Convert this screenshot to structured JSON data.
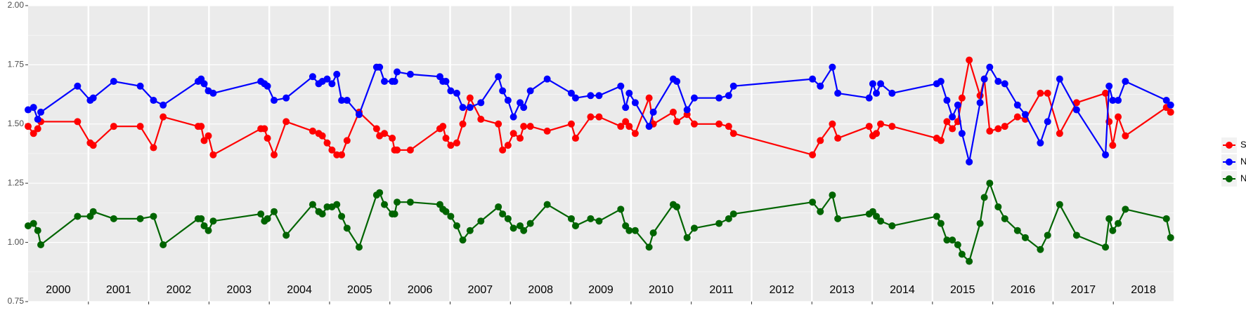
{
  "chart_data": {
    "type": "line",
    "categories": [
      "2000",
      "2001",
      "2002",
      "2003",
      "2004",
      "2005",
      "2006",
      "2007",
      "2008",
      "2009",
      "2010",
      "2011",
      "2012",
      "2013",
      "2014",
      "2015",
      "2016",
      "2017",
      "2018"
    ],
    "x": [
      2000.0,
      2000.09,
      2000.16,
      2000.21,
      2000.82,
      2001.03,
      2001.08,
      2001.42,
      2001.86,
      2002.08,
      2002.24,
      2002.82,
      2002.87,
      2002.92,
      2002.99,
      2003.07,
      2003.86,
      2003.92,
      2003.97,
      2004.08,
      2004.28,
      2004.72,
      2004.82,
      2004.88,
      2004.96,
      2005.04,
      2005.12,
      2005.2,
      2005.29,
      2005.49,
      2005.78,
      2005.83,
      2005.91,
      2006.04,
      2006.08,
      2006.12,
      2006.34,
      2006.83,
      2006.88,
      2006.93,
      2007.01,
      2007.11,
      2007.21,
      2007.33,
      2007.51,
      2007.8,
      2007.87,
      2007.96,
      2008.05,
      2008.16,
      2008.22,
      2008.33,
      2008.61,
      2009.01,
      2009.08,
      2009.33,
      2009.47,
      2009.83,
      2009.91,
      2009.97,
      2010.07,
      2010.3,
      2010.37,
      2010.7,
      2010.76,
      2010.93,
      2011.05,
      2011.46,
      2011.62,
      2011.7,
      2013.01,
      2013.14,
      2013.34,
      2013.43,
      2013.95,
      2014.01,
      2014.07,
      2014.14,
      2014.33,
      2015.07,
      2015.14,
      2015.24,
      2015.33,
      2015.42,
      2015.49,
      2015.61,
      2015.79,
      2015.86,
      2015.95,
      2016.09,
      2016.2,
      2016.41,
      2016.54,
      2016.79,
      2016.91,
      2017.11,
      2017.39,
      2017.87,
      2017.93,
      2017.99,
      2018.08,
      2018.2,
      2018.88,
      2018.95
    ],
    "series": [
      {
        "name": "SWIR",
        "color": "#ff0000",
        "values": [
          1.49,
          1.46,
          1.48,
          1.51,
          1.51,
          1.42,
          1.41,
          1.49,
          1.49,
          1.4,
          1.53,
          1.49,
          1.49,
          1.43,
          1.45,
          1.37,
          1.48,
          1.48,
          1.44,
          1.37,
          1.51,
          1.47,
          1.46,
          1.45,
          1.42,
          1.39,
          1.37,
          1.37,
          1.43,
          1.55,
          1.48,
          1.45,
          1.46,
          1.44,
          1.39,
          1.39,
          1.39,
          1.48,
          1.49,
          1.44,
          1.41,
          1.42,
          1.5,
          1.61,
          1.52,
          1.5,
          1.39,
          1.41,
          1.46,
          1.44,
          1.49,
          1.49,
          1.47,
          1.5,
          1.44,
          1.53,
          1.53,
          1.49,
          1.51,
          1.49,
          1.46,
          1.61,
          1.5,
          1.55,
          1.51,
          1.54,
          1.5,
          1.5,
          1.49,
          1.46,
          1.37,
          1.43,
          1.5,
          1.44,
          1.49,
          1.45,
          1.46,
          1.5,
          1.49,
          1.44,
          1.43,
          1.51,
          1.48,
          1.51,
          1.61,
          1.77,
          1.62,
          1.69,
          1.47,
          1.48,
          1.49,
          1.53,
          1.52,
          1.63,
          1.63,
          1.46,
          1.59,
          1.63,
          1.51,
          1.41,
          1.53,
          1.45,
          1.57,
          1.55
        ]
      },
      {
        "name": "NDVI",
        "color": "#0000ff",
        "values": [
          1.56,
          1.57,
          1.52,
          1.55,
          1.66,
          1.6,
          1.61,
          1.68,
          1.66,
          1.6,
          1.58,
          1.68,
          1.69,
          1.67,
          1.64,
          1.63,
          1.68,
          1.67,
          1.66,
          1.6,
          1.61,
          1.7,
          1.67,
          1.68,
          1.69,
          1.67,
          1.71,
          1.6,
          1.6,
          1.54,
          1.74,
          1.74,
          1.68,
          1.68,
          1.68,
          1.72,
          1.71,
          1.7,
          1.68,
          1.68,
          1.64,
          1.63,
          1.57,
          1.57,
          1.59,
          1.7,
          1.64,
          1.6,
          1.53,
          1.59,
          1.57,
          1.64,
          1.69,
          1.63,
          1.61,
          1.62,
          1.62,
          1.66,
          1.57,
          1.63,
          1.59,
          1.49,
          1.55,
          1.69,
          1.68,
          1.56,
          1.61,
          1.61,
          1.62,
          1.66,
          1.69,
          1.66,
          1.74,
          1.63,
          1.61,
          1.67,
          1.63,
          1.67,
          1.63,
          1.67,
          1.68,
          1.6,
          1.53,
          1.58,
          1.46,
          1.34,
          1.59,
          1.69,
          1.74,
          1.68,
          1.67,
          1.58,
          1.54,
          1.42,
          1.51,
          1.69,
          1.56,
          1.37,
          1.66,
          1.6,
          1.6,
          1.68,
          1.6,
          1.58
        ]
      },
      {
        "name": "NDWI",
        "color": "#006400",
        "values": [
          1.07,
          1.08,
          1.05,
          0.99,
          1.11,
          1.11,
          1.13,
          1.1,
          1.1,
          1.11,
          0.99,
          1.1,
          1.1,
          1.07,
          1.05,
          1.09,
          1.12,
          1.09,
          1.1,
          1.13,
          1.03,
          1.16,
          1.13,
          1.12,
          1.15,
          1.15,
          1.16,
          1.11,
          1.06,
          0.98,
          1.2,
          1.21,
          1.16,
          1.12,
          1.12,
          1.17,
          1.17,
          1.16,
          1.14,
          1.13,
          1.11,
          1.07,
          1.01,
          1.05,
          1.09,
          1.15,
          1.12,
          1.1,
          1.06,
          1.07,
          1.05,
          1.08,
          1.16,
          1.1,
          1.07,
          1.1,
          1.09,
          1.14,
          1.07,
          1.05,
          1.05,
          0.98,
          1.04,
          1.16,
          1.15,
          1.02,
          1.06,
          1.08,
          1.1,
          1.12,
          1.17,
          1.13,
          1.2,
          1.1,
          1.12,
          1.13,
          1.11,
          1.09,
          1.07,
          1.11,
          1.08,
          1.01,
          1.01,
          0.99,
          0.95,
          0.92,
          1.08,
          1.19,
          1.25,
          1.15,
          1.1,
          1.05,
          1.02,
          0.97,
          1.03,
          1.16,
          1.03,
          0.98,
          1.1,
          1.05,
          1.08,
          1.14,
          1.1,
          1.02
        ]
      }
    ],
    "xlim": [
      2000,
      2019
    ],
    "xticks": [
      2001,
      2002,
      2003,
      2004,
      2005,
      2006,
      2007,
      2008,
      2009,
      2010,
      2011,
      2012,
      2013,
      2014,
      2015,
      2016,
      2017,
      2018
    ],
    "ylim": [
      0.75,
      2.0
    ],
    "yticks": [
      {
        "value": 0.75,
        "label": "0.75"
      },
      {
        "value": 1.0,
        "label": "1.00"
      },
      {
        "value": 1.25,
        "label": "1.25"
      },
      {
        "value": 1.5,
        "label": "1.50"
      },
      {
        "value": 1.75,
        "label": "1.75"
      },
      {
        "value": 2.0,
        "label": "2.00"
      }
    ],
    "grid": true,
    "legend": "right"
  }
}
